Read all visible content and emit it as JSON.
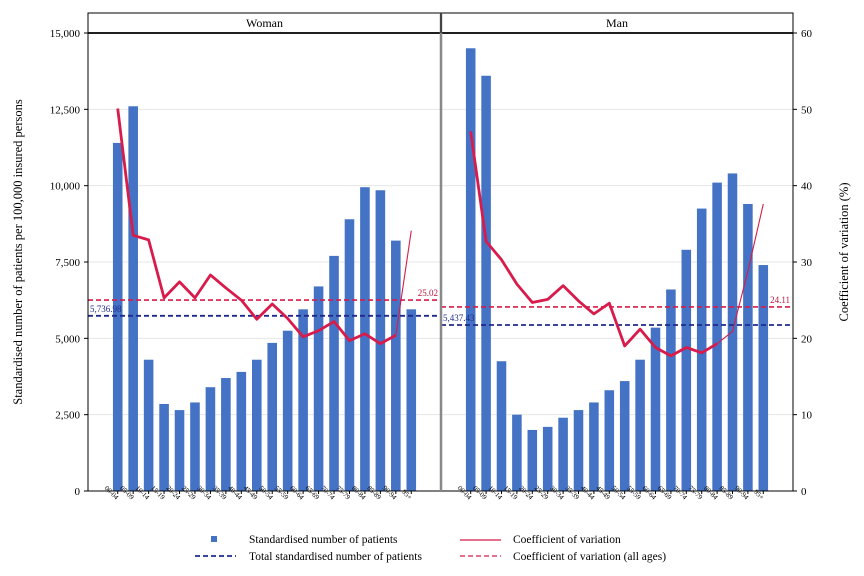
{
  "chart_data": {
    "type": "bar",
    "ylabel": "Standardised number of patients per 100,000 insured persons",
    "y2label": "Coefficient of variation (%)",
    "ylim": [
      0,
      15000
    ],
    "y2lim": [
      0,
      60
    ],
    "yticks": [
      "0",
      "2,500",
      "5,000",
      "7,500",
      "10,000",
      "12,500",
      "15,000"
    ],
    "y2ticks": [
      "0",
      "10",
      "20",
      "30",
      "40",
      "50",
      "60"
    ],
    "categories": [
      "00-04",
      "05-09",
      "10-14",
      "15-19",
      "20-24",
      "25-29",
      "30-34",
      "35-39",
      "40-44",
      "45-49",
      "50-54",
      "55-59",
      "60-64",
      "65-69",
      "70-74",
      "75-79",
      "80-84",
      "85-89",
      "90-94",
      "95+"
    ],
    "grid": "horizontal",
    "colors": {
      "bar": "#4472c4",
      "cv": "#d81b4b",
      "cv_all": "#d81b4b",
      "total": "#1f2a8c"
    },
    "panels": [
      {
        "title": "Woman",
        "patients": [
          11400,
          12600,
          4300,
          2850,
          2650,
          2900,
          3400,
          3700,
          3900,
          4300,
          4850,
          5250,
          5950,
          6700,
          7700,
          8900,
          9950,
          9850,
          8200,
          5950
        ],
        "cv": [
          50.1,
          33.5,
          32.9,
          25.3,
          27.4,
          25.3,
          28.3,
          26.6,
          25.0,
          22.5,
          24.5,
          22.6,
          20.2,
          21.0,
          22.2,
          19.7,
          20.6,
          19.3,
          20.4,
          34.1
        ],
        "total": 5736.98,
        "total_label": "5,736.98",
        "cv_all": 25.02,
        "cv_all_label": "25.02"
      },
      {
        "title": "Man",
        "patients": [
          14500,
          13600,
          4250,
          2500,
          2000,
          2100,
          2400,
          2650,
          2900,
          3300,
          3600,
          4300,
          5350,
          6600,
          7900,
          9250,
          10100,
          10400,
          9400,
          7400
        ],
        "cv": [
          47.1,
          32.7,
          30.3,
          27.1,
          24.7,
          25.1,
          26.9,
          24.9,
          23.2,
          24.6,
          19.0,
          21.2,
          18.8,
          17.7,
          18.8,
          18.1,
          19.3,
          20.9,
          28.8,
          37.6
        ],
        "total": 5437.43,
        "total_label": "5,437.43",
        "cv_all": 24.11,
        "cv_all_label": "24.11"
      }
    ],
    "legend": {
      "bars": "Standardised number of patients",
      "total": "Total standardised number of patients",
      "cv": "Coefficient of variation",
      "cv_all": "Coefficient of variation (all ages)"
    }
  }
}
